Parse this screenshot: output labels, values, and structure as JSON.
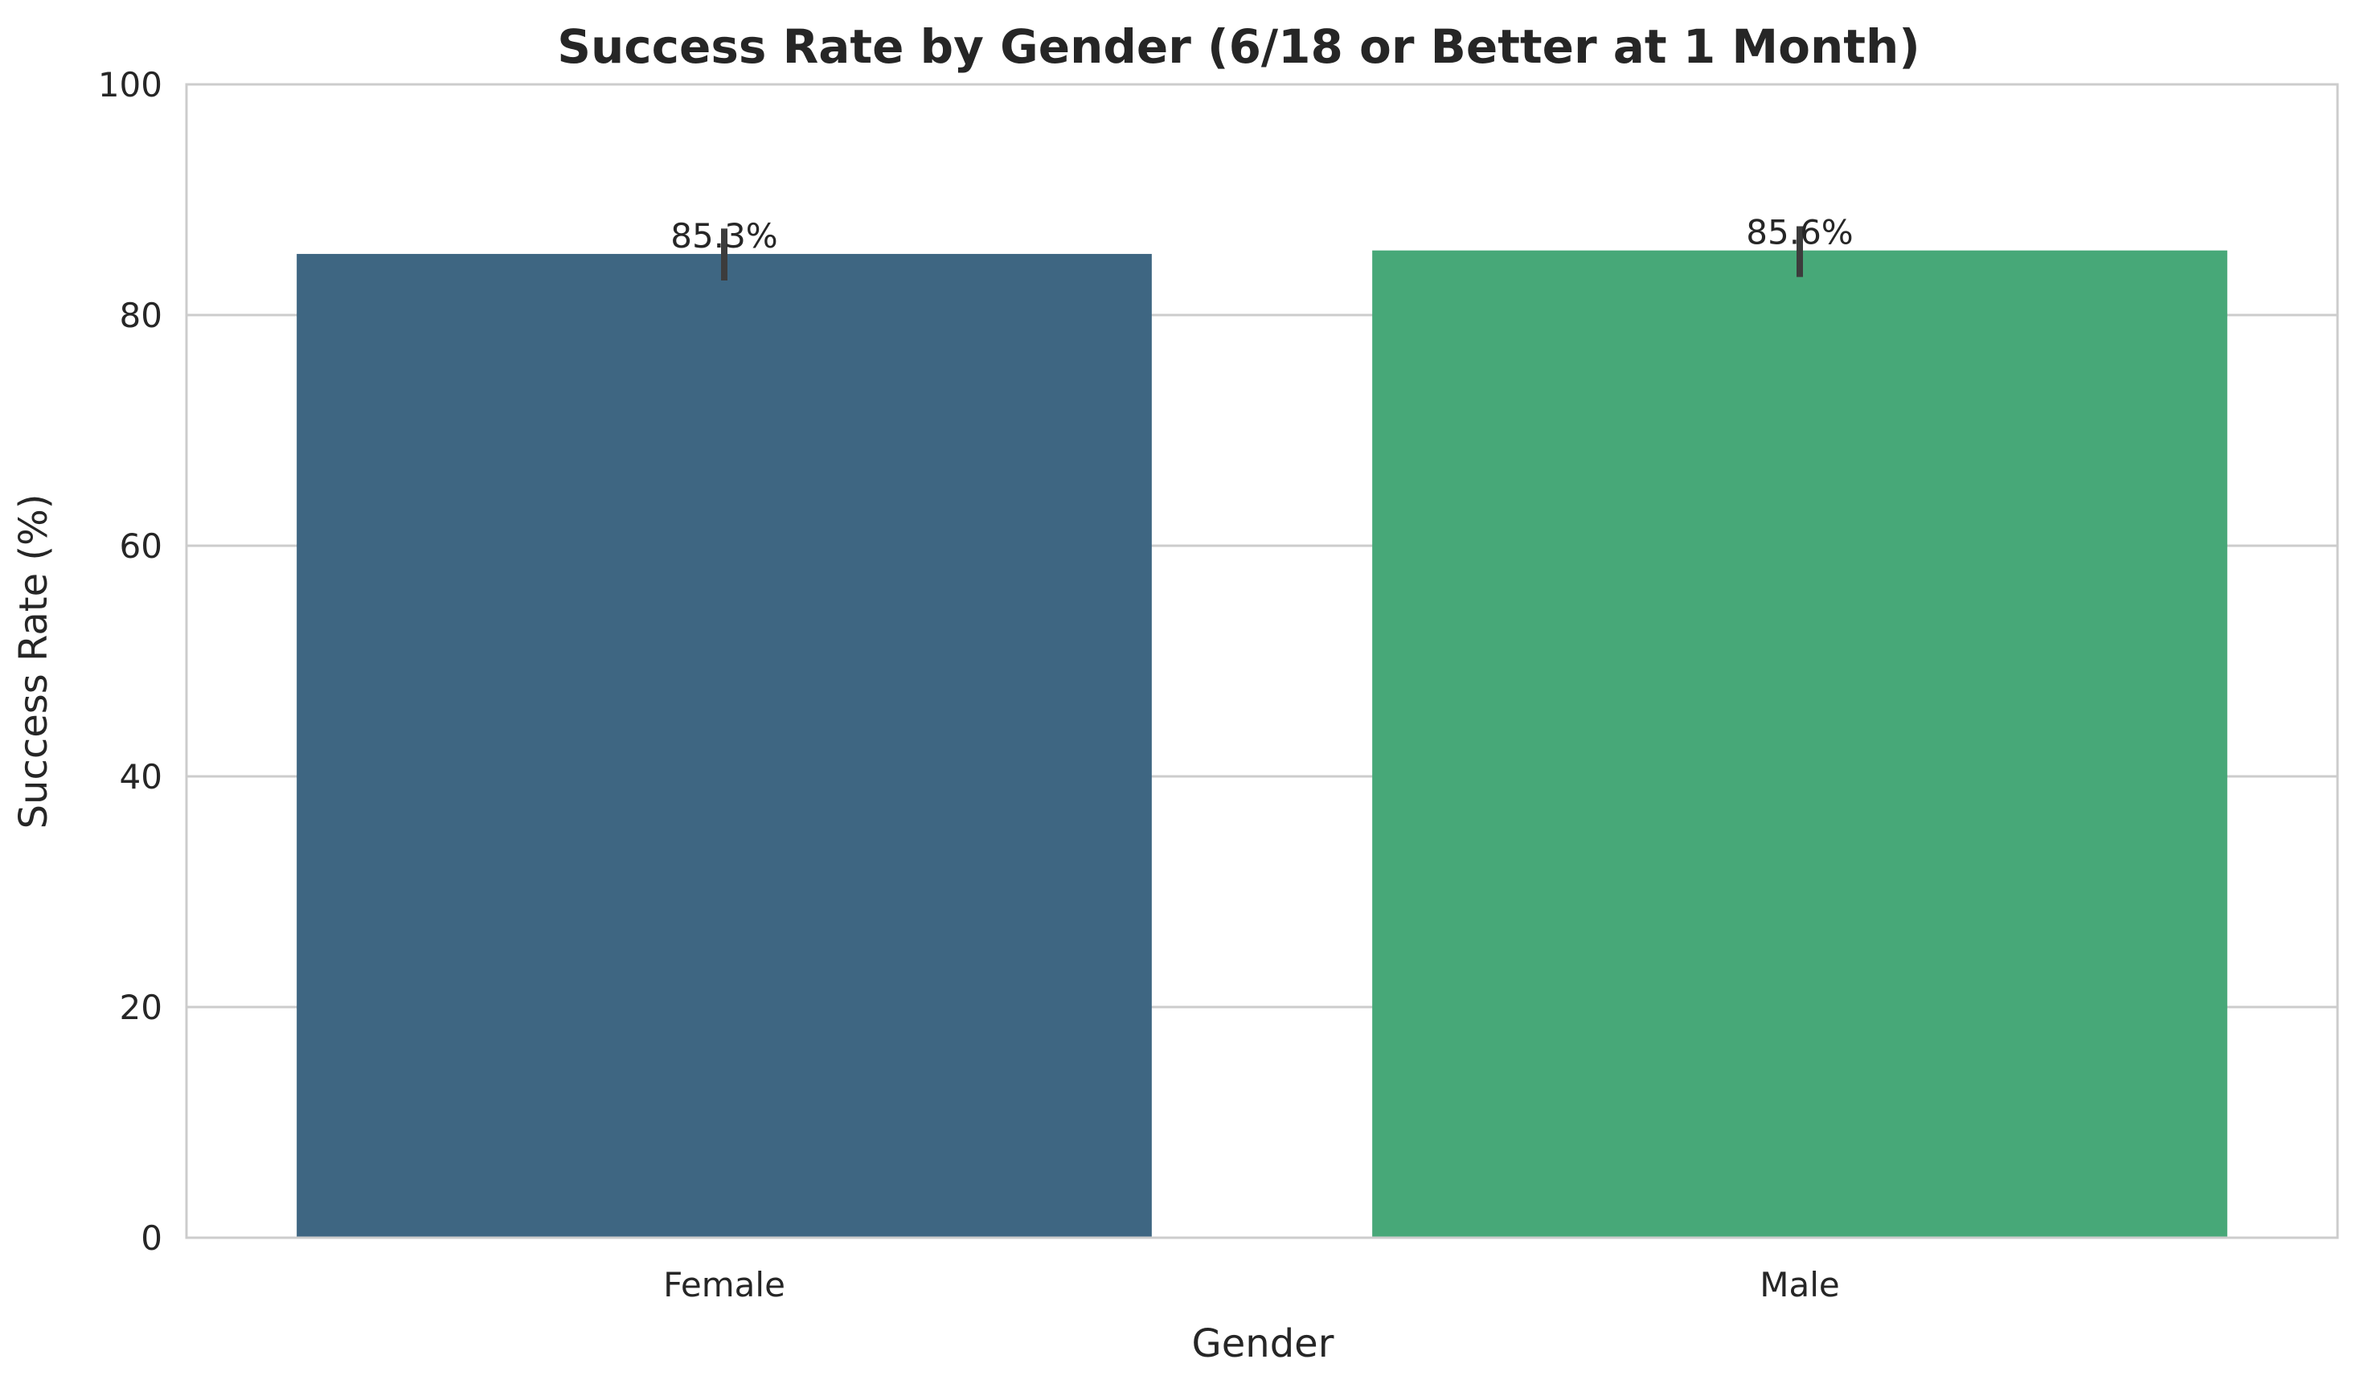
{
  "chart_data": {
    "type": "bar",
    "title": "Success Rate by Gender (6/18 or Better at 1 Month)",
    "xlabel": "Gender",
    "ylabel": "Success Rate (%)",
    "categories": [
      "Female",
      "Male"
    ],
    "values": [
      85.3,
      85.6
    ],
    "value_labels": [
      "85.3%",
      "85.6%"
    ],
    "error_bars": [
      [
        83.0,
        87.5
      ],
      [
        83.3,
        87.7
      ]
    ],
    "ylim": [
      0,
      100
    ],
    "yticks": [
      0,
      20,
      40,
      60,
      80,
      100
    ],
    "grid": "horizontal",
    "colors": [
      "#3e6682",
      "#47a878"
    ],
    "style": {
      "grid_color": "#cccccc",
      "axes_edge_color": "#cccccc",
      "errorbar_color": "#3c3c3c"
    }
  }
}
